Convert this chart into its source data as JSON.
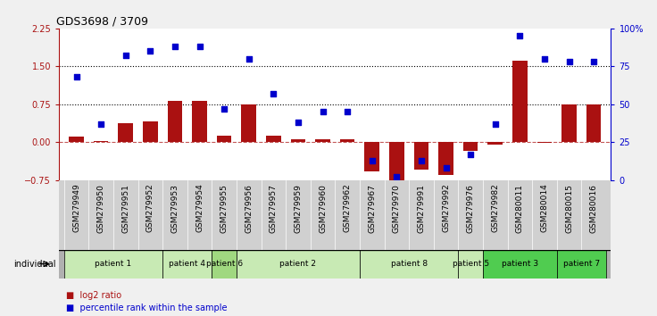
{
  "title": "GDS3698 / 3709",
  "samples": [
    "GSM279949",
    "GSM279950",
    "GSM279951",
    "GSM279952",
    "GSM279953",
    "GSM279954",
    "GSM279955",
    "GSM279956",
    "GSM279957",
    "GSM279959",
    "GSM279960",
    "GSM279962",
    "GSM279967",
    "GSM279970",
    "GSM279991",
    "GSM279992",
    "GSM279976",
    "GSM279982",
    "GSM280011",
    "GSM280014",
    "GSM280015",
    "GSM280016"
  ],
  "log2_ratio": [
    0.12,
    0.02,
    0.38,
    0.42,
    0.82,
    0.82,
    0.13,
    0.75,
    0.13,
    0.05,
    0.06,
    0.06,
    -0.58,
    -0.78,
    -0.55,
    -0.65,
    -0.18,
    -0.05,
    1.62,
    -0.02,
    0.75,
    0.75
  ],
  "percentile_rank": [
    68,
    37,
    82,
    85,
    88,
    88,
    47,
    80,
    57,
    38,
    45,
    45,
    13,
    2,
    13,
    8,
    17,
    37,
    95,
    80,
    78,
    78
  ],
  "patients": [
    {
      "label": "patient 1",
      "start": 0,
      "end": 4,
      "color": "#c8eab4"
    },
    {
      "label": "patient 4",
      "start": 4,
      "end": 6,
      "color": "#c8eab4"
    },
    {
      "label": "patient 6",
      "start": 6,
      "end": 7,
      "color": "#a0d880"
    },
    {
      "label": "patient 2",
      "start": 7,
      "end": 12,
      "color": "#c8eab4"
    },
    {
      "label": "patient 8",
      "start": 12,
      "end": 16,
      "color": "#c8eab4"
    },
    {
      "label": "patient 5",
      "start": 16,
      "end": 17,
      "color": "#c8eab4"
    },
    {
      "label": "patient 3",
      "start": 17,
      "end": 20,
      "color": "#50cc50"
    },
    {
      "label": "patient 7",
      "start": 20,
      "end": 22,
      "color": "#50cc50"
    }
  ],
  "bar_color": "#aa1111",
  "scatter_color": "#0000cc",
  "ylim_left": [
    -0.75,
    2.25
  ],
  "ylim_right": [
    0,
    100
  ],
  "hlines": [
    0.75,
    1.5
  ],
  "plot_bg": "#ffffff",
  "fig_bg": "#f0f0f0"
}
